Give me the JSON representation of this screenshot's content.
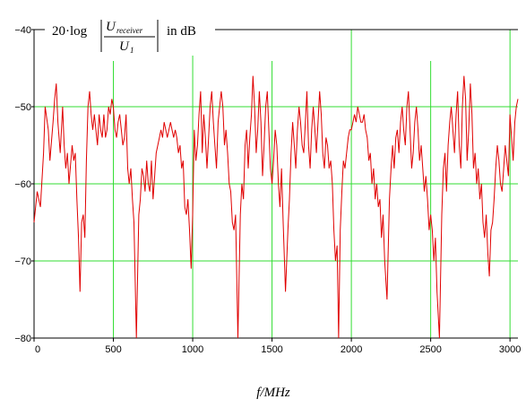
{
  "chart_data": {
    "type": "line",
    "title": {
      "prefix": "20·log",
      "numerator": "U",
      "numerator_sub": "receiver",
      "denominator": "U",
      "denominator_sub": "1",
      "suffix": "in dB"
    },
    "xlabel": "f/MHz",
    "ylabel": "",
    "xlim": [
      0,
      3050
    ],
    "ylim": [
      -80,
      -40
    ],
    "x_ticks": [
      0,
      500,
      1000,
      1500,
      2000,
      2500,
      3000
    ],
    "x_tick_labels": [
      "0",
      "500",
      "1000",
      "1500",
      "2000",
      "2500",
      "3000"
    ],
    "y_ticks": [
      -40,
      -50,
      -60,
      -70,
      -80
    ],
    "y_tick_labels": [
      "−40",
      "−50",
      "−60",
      "−70",
      "−80"
    ],
    "grid": true,
    "colors": {
      "line": "#e00000",
      "grid": "#33dd33",
      "axis": "#000000"
    },
    "series": [
      {
        "values": [
          [
            0,
            -65
          ],
          [
            20,
            -61
          ],
          [
            40,
            -63
          ],
          [
            60,
            -56
          ],
          [
            70,
            -50
          ],
          [
            90,
            -53
          ],
          [
            100,
            -57
          ],
          [
            120,
            -52
          ],
          [
            130,
            -49
          ],
          [
            140,
            -47
          ],
          [
            150,
            -52
          ],
          [
            165,
            -56
          ],
          [
            180,
            -50
          ],
          [
            190,
            -55
          ],
          [
            200,
            -58
          ],
          [
            210,
            -56
          ],
          [
            220,
            -60
          ],
          [
            240,
            -55
          ],
          [
            250,
            -57
          ],
          [
            260,
            -56
          ],
          [
            270,
            -62
          ],
          [
            280,
            -67
          ],
          [
            290,
            -74
          ],
          [
            300,
            -65
          ],
          [
            310,
            -64
          ],
          [
            320,
            -67
          ],
          [
            330,
            -57
          ],
          [
            340,
            -50
          ],
          [
            350,
            -48
          ],
          [
            360,
            -51
          ],
          [
            370,
            -53
          ],
          [
            380,
            -51
          ],
          [
            390,
            -53
          ],
          [
            400,
            -55
          ],
          [
            410,
            -51
          ],
          [
            420,
            -53
          ],
          [
            430,
            -54
          ],
          [
            440,
            -51
          ],
          [
            450,
            -54
          ],
          [
            460,
            -53
          ],
          [
            470,
            -50
          ],
          [
            480,
            -51
          ],
          [
            490,
            -49
          ],
          [
            500,
            -50
          ],
          [
            510,
            -53
          ],
          [
            520,
            -54
          ],
          [
            530,
            -52
          ],
          [
            540,
            -51
          ],
          [
            550,
            -53
          ],
          [
            560,
            -55
          ],
          [
            570,
            -54
          ],
          [
            580,
            -51
          ],
          [
            590,
            -58
          ],
          [
            600,
            -60
          ],
          [
            610,
            -58
          ],
          [
            620,
            -62
          ],
          [
            630,
            -65
          ],
          [
            645,
            -81
          ],
          [
            660,
            -64
          ],
          [
            670,
            -62
          ],
          [
            680,
            -58
          ],
          [
            690,
            -59
          ],
          [
            700,
            -61
          ],
          [
            710,
            -57
          ],
          [
            720,
            -60
          ],
          [
            730,
            -61
          ],
          [
            740,
            -57
          ],
          [
            750,
            -62
          ],
          [
            760,
            -59
          ],
          [
            770,
            -56
          ],
          [
            780,
            -55
          ],
          [
            790,
            -54
          ],
          [
            800,
            -53
          ],
          [
            810,
            -54
          ],
          [
            820,
            -52
          ],
          [
            830,
            -53
          ],
          [
            840,
            -54
          ],
          [
            850,
            -53
          ],
          [
            860,
            -52
          ],
          [
            870,
            -53
          ],
          [
            880,
            -54
          ],
          [
            890,
            -53
          ],
          [
            900,
            -54
          ],
          [
            910,
            -56
          ],
          [
            920,
            -55
          ],
          [
            930,
            -58
          ],
          [
            940,
            -57
          ],
          [
            950,
            -63
          ],
          [
            960,
            -64
          ],
          [
            970,
            -62
          ],
          [
            980,
            -66
          ],
          [
            990,
            -71
          ],
          [
            1000,
            -64
          ],
          [
            1010,
            -53
          ],
          [
            1020,
            -57
          ],
          [
            1030,
            -55
          ],
          [
            1040,
            -51
          ],
          [
            1050,
            -48
          ],
          [
            1060,
            -56
          ],
          [
            1070,
            -51
          ],
          [
            1080,
            -54
          ],
          [
            1090,
            -58
          ],
          [
            1100,
            -54
          ],
          [
            1110,
            -50
          ],
          [
            1120,
            -48
          ],
          [
            1130,
            -52
          ],
          [
            1140,
            -55
          ],
          [
            1150,
            -58
          ],
          [
            1160,
            -52
          ],
          [
            1170,
            -50
          ],
          [
            1180,
            -48
          ],
          [
            1190,
            -50
          ],
          [
            1200,
            -55
          ],
          [
            1210,
            -53
          ],
          [
            1220,
            -56
          ],
          [
            1230,
            -60
          ],
          [
            1240,
            -61
          ],
          [
            1250,
            -65
          ],
          [
            1260,
            -66
          ],
          [
            1270,
            -64
          ],
          [
            1285,
            -81
          ],
          [
            1300,
            -64
          ],
          [
            1310,
            -60
          ],
          [
            1320,
            -62
          ],
          [
            1330,
            -55
          ],
          [
            1340,
            -53
          ],
          [
            1350,
            -58
          ],
          [
            1360,
            -54
          ],
          [
            1370,
            -51
          ],
          [
            1380,
            -46
          ],
          [
            1390,
            -50
          ],
          [
            1400,
            -56
          ],
          [
            1410,
            -53
          ],
          [
            1420,
            -48
          ],
          [
            1430,
            -52
          ],
          [
            1440,
            -59
          ],
          [
            1450,
            -55
          ],
          [
            1460,
            -50
          ],
          [
            1470,
            -48
          ],
          [
            1480,
            -53
          ],
          [
            1490,
            -58
          ],
          [
            1500,
            -60
          ],
          [
            1510,
            -57
          ],
          [
            1520,
            -53
          ],
          [
            1530,
            -55
          ],
          [
            1540,
            -60
          ],
          [
            1550,
            -63
          ],
          [
            1560,
            -58
          ],
          [
            1570,
            -65
          ],
          [
            1585,
            -74
          ],
          [
            1600,
            -66
          ],
          [
            1610,
            -62
          ],
          [
            1620,
            -56
          ],
          [
            1630,
            -52
          ],
          [
            1640,
            -55
          ],
          [
            1650,
            -58
          ],
          [
            1660,
            -53
          ],
          [
            1670,
            -50
          ],
          [
            1680,
            -52
          ],
          [
            1690,
            -55
          ],
          [
            1700,
            -56
          ],
          [
            1710,
            -52
          ],
          [
            1720,
            -48
          ],
          [
            1730,
            -55
          ],
          [
            1740,
            -58
          ],
          [
            1750,
            -53
          ],
          [
            1760,
            -50
          ],
          [
            1770,
            -53
          ],
          [
            1780,
            -56
          ],
          [
            1790,
            -52
          ],
          [
            1800,
            -48
          ],
          [
            1810,
            -51
          ],
          [
            1820,
            -56
          ],
          [
            1830,
            -58
          ],
          [
            1840,
            -54
          ],
          [
            1850,
            -55
          ],
          [
            1860,
            -58
          ],
          [
            1870,
            -57
          ],
          [
            1880,
            -60
          ],
          [
            1890,
            -66
          ],
          [
            1900,
            -70
          ],
          [
            1910,
            -68
          ],
          [
            1920,
            -80
          ],
          [
            1930,
            -66
          ],
          [
            1940,
            -61
          ],
          [
            1950,
            -57
          ],
          [
            1960,
            -58
          ],
          [
            1970,
            -56
          ],
          [
            1980,
            -54
          ],
          [
            1990,
            -53
          ],
          [
            2000,
            -53
          ],
          [
            2010,
            -52
          ],
          [
            2020,
            -51
          ],
          [
            2030,
            -52
          ],
          [
            2040,
            -50
          ],
          [
            2050,
            -51
          ],
          [
            2060,
            -52
          ],
          [
            2070,
            -52
          ],
          [
            2080,
            -51
          ],
          [
            2090,
            -53
          ],
          [
            2100,
            -54
          ],
          [
            2110,
            -57
          ],
          [
            2120,
            -56
          ],
          [
            2130,
            -60
          ],
          [
            2140,
            -58
          ],
          [
            2150,
            -62
          ],
          [
            2160,
            -60
          ],
          [
            2170,
            -63
          ],
          [
            2180,
            -62
          ],
          [
            2190,
            -67
          ],
          [
            2200,
            -64
          ],
          [
            2210,
            -70
          ],
          [
            2225,
            -75
          ],
          [
            2240,
            -62
          ],
          [
            2250,
            -58
          ],
          [
            2260,
            -55
          ],
          [
            2270,
            -58
          ],
          [
            2280,
            -54
          ],
          [
            2290,
            -53
          ],
          [
            2300,
            -56
          ],
          [
            2310,
            -52
          ],
          [
            2320,
            -50
          ],
          [
            2330,
            -53
          ],
          [
            2340,
            -55
          ],
          [
            2350,
            -50
          ],
          [
            2360,
            -48
          ],
          [
            2370,
            -53
          ],
          [
            2380,
            -58
          ],
          [
            2390,
            -56
          ],
          [
            2400,
            -52
          ],
          [
            2410,
            -50
          ],
          [
            2420,
            -53
          ],
          [
            2430,
            -57
          ],
          [
            2440,
            -55
          ],
          [
            2450,
            -58
          ],
          [
            2460,
            -61
          ],
          [
            2470,
            -59
          ],
          [
            2480,
            -62
          ],
          [
            2490,
            -66
          ],
          [
            2500,
            -64
          ],
          [
            2510,
            -66
          ],
          [
            2520,
            -70
          ],
          [
            2530,
            -67
          ],
          [
            2540,
            -74
          ],
          [
            2555,
            -80
          ],
          [
            2570,
            -64
          ],
          [
            2580,
            -58
          ],
          [
            2590,
            -56
          ],
          [
            2600,
            -61
          ],
          [
            2610,
            -55
          ],
          [
            2620,
            -52
          ],
          [
            2630,
            -50
          ],
          [
            2640,
            -53
          ],
          [
            2650,
            -56
          ],
          [
            2660,
            -51
          ],
          [
            2670,
            -48
          ],
          [
            2680,
            -55
          ],
          [
            2690,
            -58
          ],
          [
            2700,
            -50
          ],
          [
            2710,
            -46
          ],
          [
            2720,
            -49
          ],
          [
            2730,
            -57
          ],
          [
            2740,
            -53
          ],
          [
            2750,
            -47
          ],
          [
            2760,
            -51
          ],
          [
            2770,
            -58
          ],
          [
            2780,
            -56
          ],
          [
            2790,
            -60
          ],
          [
            2800,
            -58
          ],
          [
            2810,
            -62
          ],
          [
            2820,
            -60
          ],
          [
            2830,
            -65
          ],
          [
            2840,
            -67
          ],
          [
            2850,
            -64
          ],
          [
            2860,
            -69
          ],
          [
            2870,
            -72
          ],
          [
            2880,
            -66
          ],
          [
            2890,
            -65
          ],
          [
            2900,
            -62
          ],
          [
            2910,
            -58
          ],
          [
            2920,
            -55
          ],
          [
            2930,
            -57
          ],
          [
            2940,
            -60
          ],
          [
            2950,
            -61
          ],
          [
            2960,
            -58
          ],
          [
            2970,
            -55
          ],
          [
            2980,
            -57
          ],
          [
            2990,
            -59
          ],
          [
            3000,
            -51
          ],
          [
            3010,
            -54
          ],
          [
            3020,
            -57
          ],
          [
            3030,
            -52
          ],
          [
            3040,
            -50
          ],
          [
            3050,
            -49
          ]
        ]
      }
    ]
  }
}
